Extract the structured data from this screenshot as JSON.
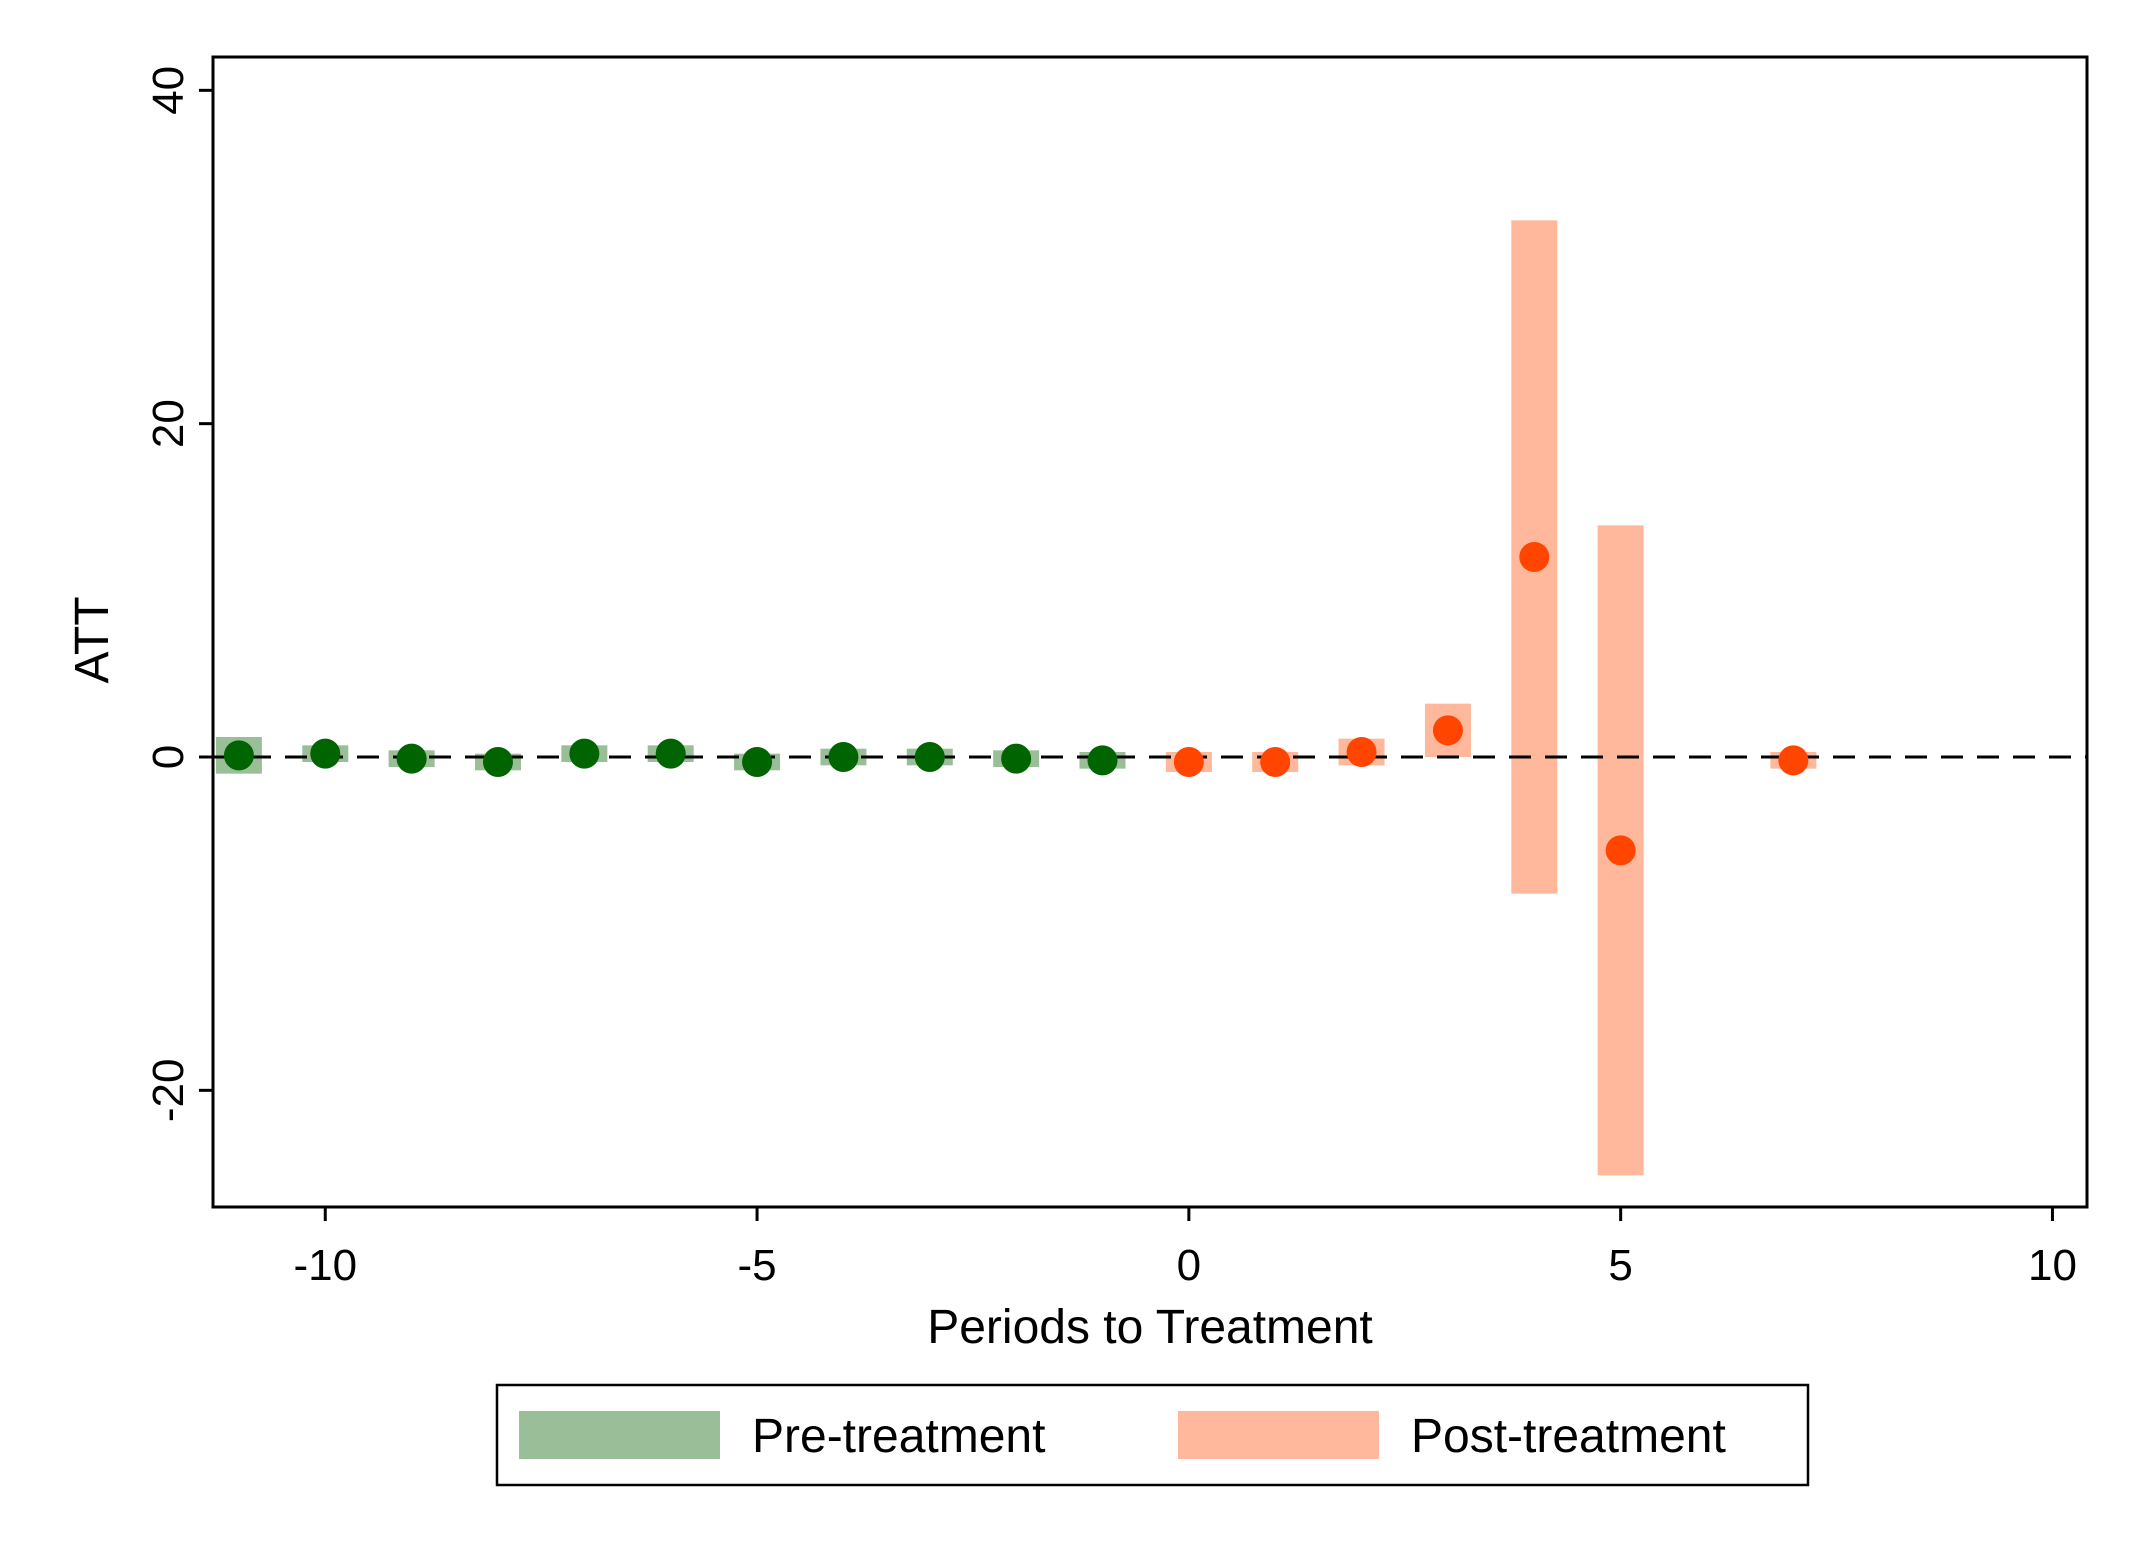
{
  "chart_data": {
    "type": "scatter",
    "title": "",
    "xlabel": "Periods to Treatment",
    "ylabel": "ATT",
    "xlim": [
      -11.3,
      10.4
    ],
    "ylim": [
      -27,
      42
    ],
    "xticks": [
      -10,
      -5,
      0,
      5,
      10
    ],
    "yticks": [
      40,
      20,
      0,
      -20
    ],
    "xtick_labels": [
      "-10",
      "-5",
      "0",
      "5",
      "10"
    ],
    "ytick_labels": [
      "40",
      "20",
      "0",
      "-20"
    ],
    "reference_line": {
      "y": 0,
      "style": "dashed"
    },
    "grid": false,
    "legend_position": "bottom",
    "series": [
      {
        "name": "Pre-treatment",
        "marker_color": "#006400",
        "band_color": "#9abf98",
        "points": [
          {
            "x": -11,
            "y": 0.1,
            "lo": -1.0,
            "hi": 1.2
          },
          {
            "x": -10,
            "y": 0.2,
            "lo": -0.3,
            "hi": 0.7
          },
          {
            "x": -9,
            "y": -0.1,
            "lo": -0.6,
            "hi": 0.4
          },
          {
            "x": -8,
            "y": -0.3,
            "lo": -0.8,
            "hi": 0.2
          },
          {
            "x": -7,
            "y": 0.2,
            "lo": -0.3,
            "hi": 0.7
          },
          {
            "x": -6,
            "y": 0.2,
            "lo": -0.3,
            "hi": 0.7
          },
          {
            "x": -5,
            "y": -0.3,
            "lo": -0.8,
            "hi": 0.2
          },
          {
            "x": -4,
            "y": 0.0,
            "lo": -0.5,
            "hi": 0.5
          },
          {
            "x": -3,
            "y": 0.0,
            "lo": -0.5,
            "hi": 0.5
          },
          {
            "x": -2,
            "y": -0.1,
            "lo": -0.6,
            "hi": 0.4
          },
          {
            "x": -1,
            "y": -0.2,
            "lo": -0.7,
            "hi": 0.3
          }
        ]
      },
      {
        "name": "Post-treatment",
        "marker_color": "#ff4500",
        "band_color": "#ffb89b",
        "points": [
          {
            "x": 0,
            "y": -0.3,
            "lo": -0.9,
            "hi": 0.3
          },
          {
            "x": 1,
            "y": -0.3,
            "lo": -0.9,
            "hi": 0.3
          },
          {
            "x": 2,
            "y": 0.3,
            "lo": -0.5,
            "hi": 1.1
          },
          {
            "x": 3,
            "y": 1.6,
            "lo": 0.0,
            "hi": 3.2
          },
          {
            "x": 4,
            "y": 12.0,
            "lo": -8.2,
            "hi": 32.2
          },
          {
            "x": 5,
            "y": -5.6,
            "lo": -25.1,
            "hi": 13.9
          },
          {
            "x": 7,
            "y": -0.2,
            "lo": -0.7,
            "hi": 0.3
          }
        ]
      }
    ]
  }
}
